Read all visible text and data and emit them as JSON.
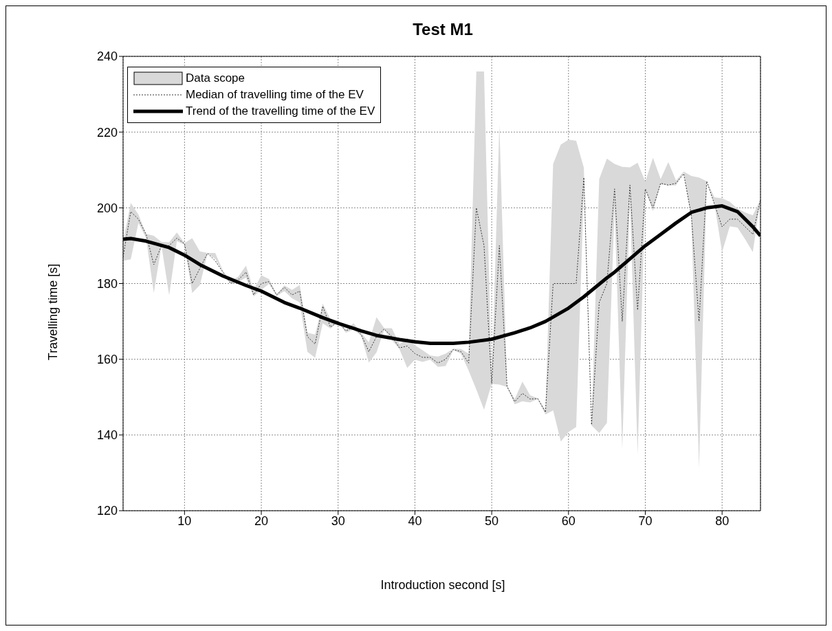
{
  "chart_data": {
    "type": "line",
    "title": "Test M1",
    "xlabel": "Introduction second [s]",
    "ylabel": "Travelling time [s]",
    "annotations": [
      "Data scope"
    ],
    "x": [
      2,
      3,
      4,
      5,
      6,
      7,
      8,
      9,
      10,
      11,
      12,
      13,
      14,
      15,
      16,
      17,
      18,
      19,
      20,
      21,
      22,
      23,
      24,
      25,
      26,
      27,
      28,
      29,
      30,
      31,
      32,
      33,
      34,
      35,
      36,
      37,
      38,
      39,
      40,
      41,
      42,
      43,
      44,
      45,
      46,
      47,
      48,
      49,
      50,
      51,
      52,
      53,
      54,
      55,
      56,
      57,
      58,
      59,
      60,
      61,
      62,
      63,
      64,
      65,
      66,
      67,
      68,
      69,
      70,
      71,
      72,
      73,
      74,
      75,
      76,
      77,
      78,
      79,
      80,
      81,
      82,
      83,
      84,
      85
    ],
    "series": [
      {
        "name": "Median of travelling time of the EV",
        "color": "#333333",
        "line_style": "dotted",
        "values": [
          187,
          199,
          197,
          193,
          185,
          190,
          190,
          192,
          190.5,
          180,
          184,
          188,
          186,
          183,
          180,
          181,
          183,
          177,
          180,
          180.5,
          177,
          179,
          177,
          178,
          166,
          164,
          174,
          168.5,
          170,
          167.5,
          168.5,
          166.5,
          162,
          166,
          168,
          166,
          163,
          163.5,
          161.5,
          160.5,
          160.5,
          159,
          160,
          162.6,
          162,
          159,
          200,
          190,
          153.6,
          190,
          152.8,
          148.8,
          151,
          149.5,
          149.6,
          146,
          180,
          180,
          180,
          180,
          208,
          142.7,
          175,
          180,
          205,
          170,
          206,
          173,
          205,
          200,
          206.5,
          206,
          206.5,
          209,
          198,
          170,
          207,
          201,
          195,
          197,
          197,
          195,
          193,
          202.2
        ],
        "lower": [
          186,
          186.4,
          196,
          192,
          177.5,
          190,
          176.9,
          191.2,
          190.2,
          177.5,
          179.6,
          188,
          186.5,
          183.1,
          179.8,
          180.4,
          181.6,
          176.6,
          178.3,
          179.9,
          176.7,
          178,
          176.1,
          175,
          162,
          160.4,
          169.5,
          168.1,
          169.8,
          167,
          167.8,
          166.2,
          159.1,
          161.8,
          167.8,
          165.1,
          162.6,
          157.7,
          159.9,
          159.3,
          159.9,
          158,
          158.2,
          162.4,
          161.5,
          157,
          152,
          146.7,
          153.5,
          153.3,
          152.7,
          148.1,
          148.9,
          148.6,
          149.5,
          145.4,
          146.5,
          138.3,
          140.8,
          142.1,
          205,
          142.5,
          140.5,
          143.2,
          200,
          136.3,
          202.8,
          134.8,
          204.7,
          199.1,
          206.2,
          205.9,
          205.9,
          209.3,
          197,
          131.2,
          207,
          201,
          188.3,
          195.1,
          194.8,
          191.7,
          188.3,
          202.2
        ],
        "upper": [
          191,
          201.3,
          198.2,
          193.1,
          192.6,
          191,
          190.9,
          193.5,
          190.7,
          192,
          188.5,
          188.1,
          188.1,
          183.4,
          180.7,
          181.8,
          184.7,
          178.3,
          182.2,
          181.2,
          177.2,
          179.5,
          178.3,
          179.6,
          167,
          166.5,
          174.7,
          170.6,
          170.3,
          167.8,
          169.5,
          167,
          164.5,
          171.1,
          168.2,
          168.2,
          164,
          165.6,
          163.7,
          162.4,
          161,
          160.7,
          161.5,
          162.8,
          162.7,
          161.5,
          236,
          236,
          153.7,
          222,
          153,
          149.5,
          154.1,
          150.5,
          149.7,
          146.7,
          211.6,
          216.7,
          218,
          217.7,
          210.6,
          143,
          207.6,
          213,
          211.6,
          210.8,
          210.7,
          211.9,
          206.9,
          213.2,
          207.6,
          212.1,
          207.2,
          209.6,
          208.4,
          208,
          207,
          202.8,
          202.5,
          201.6,
          199.8,
          198.8,
          198,
          202.2
        ]
      },
      {
        "name": "Trend of the travelling time of the EV",
        "color": "#000000",
        "line_style": "solid",
        "x": [
          2,
          3,
          5,
          8,
          10,
          12,
          15,
          18,
          20,
          23,
          25,
          28,
          30,
          33,
          35,
          38,
          40,
          42,
          45,
          47,
          50,
          53,
          55,
          57,
          60,
          62,
          65,
          66,
          68,
          70,
          72,
          74,
          76,
          78,
          80,
          82,
          84,
          85
        ],
        "values": [
          191.7,
          191.9,
          191.2,
          189.5,
          187.5,
          185,
          182,
          179.5,
          178,
          175,
          173.5,
          171,
          169.5,
          167.5,
          166.3,
          165.2,
          164.6,
          164.2,
          164.2,
          164.5,
          165.3,
          167,
          168.3,
          170,
          173.5,
          176.5,
          181.5,
          183,
          186.5,
          190,
          193,
          196,
          198.8,
          200,
          200.5,
          199,
          195,
          192.6
        ]
      }
    ],
    "xlim": [
      2,
      85
    ],
    "xticks": [
      10,
      20,
      30,
      40,
      50,
      60,
      70,
      80
    ],
    "ylim": [
      120,
      240
    ],
    "yticks": [
      120,
      140,
      160,
      180,
      200,
      220,
      240
    ],
    "grid": true,
    "legend": "top left"
  }
}
